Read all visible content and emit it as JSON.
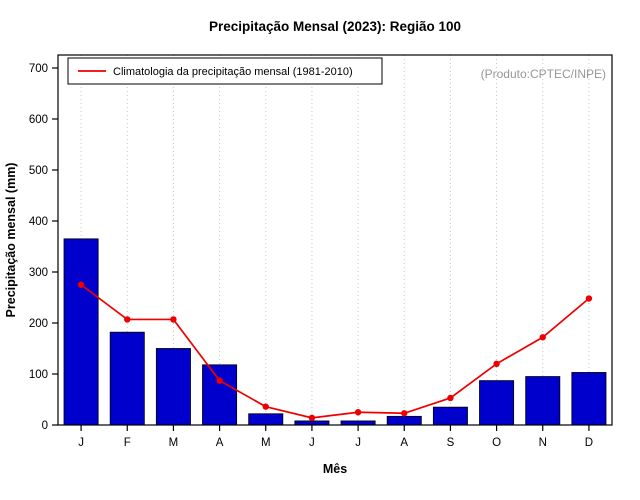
{
  "chart_data": {
    "type": "bar",
    "title": "Precipitação Mensal (2023): Região 100",
    "xlabel": "Mês",
    "ylabel": "Precipitação mensal (mm)",
    "ylim": [
      0,
      700
    ],
    "yticks": [
      0,
      100,
      200,
      300,
      400,
      500,
      600,
      700
    ],
    "categories": [
      "J",
      "F",
      "M",
      "A",
      "M",
      "J",
      "J",
      "A",
      "S",
      "O",
      "N",
      "D"
    ],
    "series": [
      {
        "name": "Precipitação mensal 2023",
        "type": "bar",
        "color": "#0000CC",
        "values": [
          365,
          182,
          150,
          118,
          22,
          8,
          8,
          17,
          35,
          87,
          95,
          103
        ]
      },
      {
        "name": "Climatologia da precipitação mensal (1981-2010)",
        "type": "line",
        "color": "#EE0000",
        "values": [
          275,
          207,
          207,
          87,
          36,
          14,
          25,
          23,
          53,
          120,
          172,
          248
        ]
      }
    ],
    "legend": {
      "entries": [
        "Climatologia da precipitação mensal (1981-2010)"
      ],
      "position": "top-left"
    },
    "annotations": [
      "(Produto:CPTEC/INPE)"
    ],
    "grid": "vertical-dotted"
  },
  "colors": {
    "bar": "#0000CC",
    "line": "#EE0000",
    "grid": "#C6C6C6",
    "watermark": "#979797",
    "axis": "#000000",
    "background": "#FFFFFF"
  }
}
